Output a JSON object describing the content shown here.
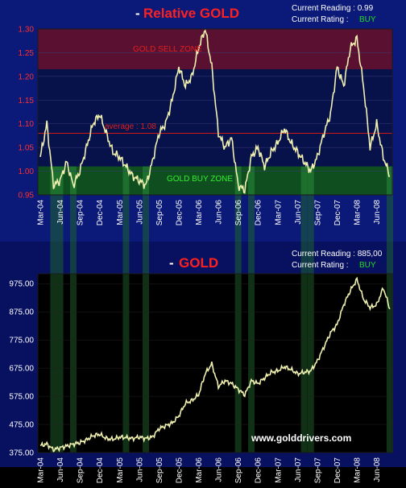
{
  "colors": {
    "background": "#000000",
    "panel_blue": "#0b1a78",
    "line": "#f0f0b0",
    "sell_zone": "#6a1030",
    "buy_zone": "#0f5e1e",
    "accent_red": "#ff2020",
    "readout_white": "#ffffff",
    "buy_green": "#22dd22"
  },
  "top": {
    "title_dash": "-",
    "title": "Relative GOLD",
    "reading_label": "Current Reading : 0.99",
    "rating_label": "Current Rating :",
    "rating_value": "BUY",
    "sell_zone_label": "GOLD SELL  ZONE",
    "buy_zone_label": "GOLD  BUY ZONE",
    "average_label": "average : 1.08"
  },
  "bottom": {
    "title_dash": "-",
    "title": "GOLD",
    "reading_label": "Current Reading : 885,00",
    "rating_label": "Current Rating :",
    "rating_value": "BUY",
    "watermark": "www.golddrivers.com"
  },
  "chart_data": [
    {
      "type": "line",
      "title": "Relative GOLD",
      "y_ticks": [
        "1.30",
        "1.25",
        "1.20",
        "1.15",
        "1.10",
        "1.05",
        "1.00",
        "0.95"
      ],
      "ylim": [
        0.95,
        1.3
      ],
      "x_ticks": [
        "Mar-04",
        "Jun-04",
        "Sep-04",
        "Dec-04",
        "Mar-05",
        "Jun-05",
        "Sep-05",
        "Dec-05",
        "Mar-06",
        "Jun-06",
        "Sep-06",
        "Dec-06",
        "Mar-07",
        "Jun-07",
        "Sep-07",
        "Dec-07",
        "Mar-08",
        "Jun-08"
      ],
      "average": 1.08,
      "sell_zone": [
        1.215,
        1.3
      ],
      "buy_zone": [
        0.95,
        1.01
      ],
      "x": [
        "Mar-04",
        "Apr-04",
        "May-04",
        "Jun-04",
        "Jul-04",
        "Aug-04",
        "Sep-04",
        "Oct-04",
        "Nov-04",
        "Dec-04",
        "Jan-05",
        "Feb-05",
        "Mar-05",
        "Apr-05",
        "May-05",
        "Jun-05",
        "Jul-05",
        "Aug-05",
        "Sep-05",
        "Oct-05",
        "Nov-05",
        "Dec-05",
        "Jan-06",
        "Feb-06",
        "Mar-06",
        "Apr-06",
        "May-06",
        "Jun-06",
        "Jul-06",
        "Aug-06",
        "Sep-06",
        "Oct-06",
        "Nov-06",
        "Dec-06",
        "Jan-07",
        "Feb-07",
        "Mar-07",
        "Apr-07",
        "May-07",
        "Jun-07",
        "Jul-07",
        "Aug-07",
        "Sep-07",
        "Oct-07",
        "Nov-07",
        "Dec-07",
        "Jan-08",
        "Feb-08",
        "Mar-08",
        "Apr-08",
        "May-08",
        "Jun-08",
        "Jul-08",
        "Aug-08"
      ],
      "values": [
        1.03,
        1.1,
        0.97,
        0.98,
        1.02,
        0.97,
        1.0,
        1.05,
        1.1,
        1.12,
        1.08,
        1.04,
        1.03,
        1.01,
        0.99,
        0.98,
        0.97,
        1.02,
        1.08,
        1.1,
        1.15,
        1.22,
        1.18,
        1.2,
        1.26,
        1.3,
        1.22,
        1.08,
        1.05,
        1.07,
        0.97,
        0.96,
        1.03,
        1.05,
        1.01,
        1.04,
        1.06,
        1.09,
        1.06,
        1.04,
        1.02,
        1.0,
        1.03,
        1.08,
        1.12,
        1.22,
        1.18,
        1.26,
        1.28,
        1.18,
        1.05,
        1.1,
        1.03,
        0.99
      ]
    },
    {
      "type": "line",
      "title": "GOLD",
      "y_ticks": [
        "975.00",
        "875.00",
        "775.00",
        "675.00",
        "575.00",
        "475.00",
        "375.00"
      ],
      "ylim": [
        375,
        1010
      ],
      "x_ticks": [
        "Mar-04",
        "Jun-04",
        "Sep-04",
        "Dec-04",
        "Mar-05",
        "Jun-05",
        "Sep-05",
        "Dec-05",
        "Mar-06",
        "Jun-06",
        "Sep-06",
        "Dec-06",
        "Mar-07",
        "Jun-07",
        "Sep-07",
        "Dec-07",
        "Mar-08",
        "Jun-08"
      ],
      "x": [
        "Mar-04",
        "Apr-04",
        "May-04",
        "Jun-04",
        "Jul-04",
        "Aug-04",
        "Sep-04",
        "Oct-04",
        "Nov-04",
        "Dec-04",
        "Jan-05",
        "Feb-05",
        "Mar-05",
        "Apr-05",
        "May-05",
        "Jun-05",
        "Jul-05",
        "Aug-05",
        "Sep-05",
        "Oct-05",
        "Nov-05",
        "Dec-05",
        "Jan-06",
        "Feb-06",
        "Mar-06",
        "Apr-06",
        "May-06",
        "Jun-06",
        "Jul-06",
        "Aug-06",
        "Sep-06",
        "Oct-06",
        "Nov-06",
        "Dec-06",
        "Jan-07",
        "Feb-07",
        "Mar-07",
        "Apr-07",
        "May-07",
        "Jun-07",
        "Jul-07",
        "Aug-07",
        "Sep-07",
        "Oct-07",
        "Nov-07",
        "Dec-07",
        "Jan-08",
        "Feb-08",
        "Mar-08",
        "Apr-08",
        "May-08",
        "Jun-08",
        "Jul-08",
        "Aug-08"
      ],
      "values": [
        400,
        405,
        385,
        392,
        398,
        405,
        410,
        420,
        435,
        440,
        425,
        422,
        430,
        428,
        425,
        430,
        425,
        430,
        460,
        470,
        480,
        505,
        550,
        560,
        580,
        655,
        690,
        610,
        630,
        620,
        600,
        580,
        630,
        620,
        640,
        660,
        665,
        680,
        670,
        655,
        660,
        665,
        700,
        750,
        800,
        830,
        900,
        950,
        990,
        920,
        890,
        900,
        960,
        885
      ]
    }
  ],
  "buy_signal_periods": [
    [
      "May-04",
      "Jun-04"
    ],
    [
      "Aug-04",
      "Aug-04"
    ],
    [
      "Apr-05",
      "Apr-05"
    ],
    [
      "Jul-05",
      "Jul-05"
    ],
    [
      "Sep-06",
      "Sep-06"
    ],
    [
      "Nov-06",
      "Nov-06"
    ],
    [
      "Jul-07",
      "Jul-07"
    ],
    [
      "Aug-07",
      "Aug-07"
    ],
    [
      "Aug-08",
      "Aug-08"
    ]
  ]
}
